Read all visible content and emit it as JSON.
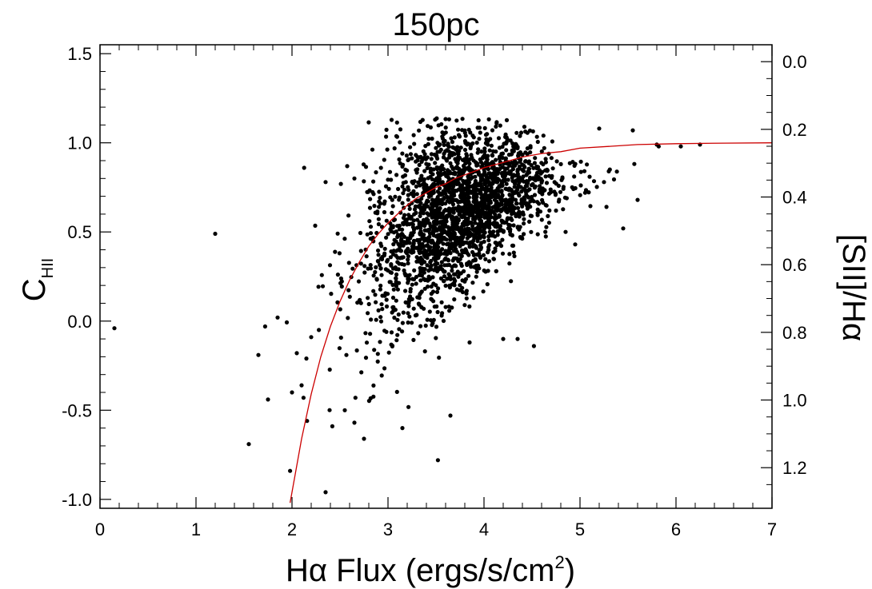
{
  "chart_data": {
    "type": "scatter",
    "title": "150pc",
    "xlabel": "Hα Flux (ergs/s/cm",
    "xlabel_sup": "2",
    "xlabel_end": ")",
    "ylabel_main": "C",
    "ylabel_sub": "HII",
    "ylabel_right": "[SII]/Hα",
    "xlim": [
      0,
      7
    ],
    "ylim": [
      -1.05,
      1.55
    ],
    "right_ylim": [
      -0.05,
      1.32
    ],
    "x_ticks": [
      "0",
      "1",
      "2",
      "3",
      "4",
      "5",
      "6",
      "7"
    ],
    "y_ticks": [
      "-1.0",
      "-0.5",
      "0.0",
      "0.5",
      "1.0",
      "1.5"
    ],
    "right_ticks": [
      "0.0",
      "0.2",
      "0.4",
      "0.6",
      "0.8",
      "1.0",
      "1.2"
    ],
    "grid": false,
    "point_color": "#000000",
    "curve_color": "#cc0000",
    "curve": {
      "name": "fit",
      "x": [
        1.98,
        2.0,
        2.1,
        2.2,
        2.3,
        2.4,
        2.5,
        2.6,
        2.7,
        2.8,
        2.9,
        3.0,
        3.1,
        3.2,
        3.3,
        3.4,
        3.5,
        3.6,
        3.7,
        3.8,
        3.9,
        4.0,
        4.2,
        4.4,
        4.6,
        4.8,
        5.0,
        5.3,
        5.6,
        6.0,
        6.5,
        7.0
      ],
      "y": [
        -1.02,
        -0.96,
        -0.66,
        -0.41,
        -0.2,
        -0.03,
        0.11,
        0.23,
        0.33,
        0.42,
        0.49,
        0.55,
        0.6,
        0.65,
        0.69,
        0.72,
        0.75,
        0.77,
        0.8,
        0.82,
        0.84,
        0.86,
        0.89,
        0.92,
        0.94,
        0.95,
        0.97,
        0.98,
        0.99,
        0.995,
        0.998,
        1.0
      ]
    },
    "outliers": [
      [
        0.15,
        -0.04
      ],
      [
        1.2,
        0.49
      ],
      [
        1.55,
        -0.69
      ],
      [
        1.65,
        -0.19
      ],
      [
        1.72,
        -0.03
      ],
      [
        1.75,
        -0.44
      ],
      [
        1.98,
        -0.84
      ],
      [
        2.35,
        -0.96
      ],
      [
        2.35,
        0.78
      ],
      [
        2.65,
        0.8
      ],
      [
        2.42,
        -0.59
      ],
      [
        2.55,
        -0.5
      ],
      [
        2.65,
        -0.57
      ],
      [
        2.75,
        -0.66
      ],
      [
        3.15,
        -0.6
      ],
      [
        3.52,
        -0.78
      ],
      [
        3.65,
        -0.53
      ],
      [
        3.85,
        -0.12
      ],
      [
        4.2,
        -0.1
      ],
      [
        4.35,
        -0.1
      ],
      [
        4.52,
        -0.14
      ],
      [
        4.62,
        0.73
      ],
      [
        4.75,
        0.62
      ],
      [
        4.85,
        0.5
      ],
      [
        4.95,
        0.43
      ],
      [
        5.1,
        0.81
      ],
      [
        5.25,
        0.78
      ],
      [
        5.45,
        0.52
      ],
      [
        5.6,
        0.68
      ],
      [
        5.8,
        0.99
      ],
      [
        5.82,
        0.98
      ],
      [
        6.05,
        0.98
      ],
      [
        6.25,
        0.99
      ],
      [
        5.3,
        0.84
      ],
      [
        5.55,
        1.07
      ],
      [
        5.2,
        1.08
      ],
      [
        2.1,
        -0.36
      ],
      [
        2.15,
        -0.21
      ],
      [
        2.2,
        -0.09
      ],
      [
        2.05,
        -0.18
      ],
      [
        2.0,
        -0.4
      ],
      [
        2.28,
        -0.05
      ],
      [
        2.12,
        -0.43
      ],
      [
        1.85,
        0.02
      ]
    ],
    "cluster": {
      "count": 2350,
      "seed": 11
    }
  }
}
